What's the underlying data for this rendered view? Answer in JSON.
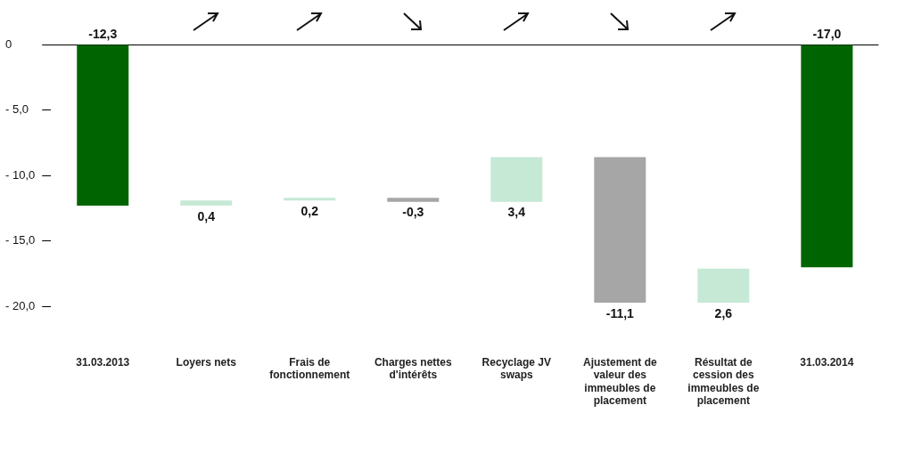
{
  "chart_data": {
    "type": "bar",
    "categories": [
      "31.03.2013",
      "Loyers nets",
      "Frais de fonctionnement",
      "Charges nettes d'intérêts",
      "Recyclage JV swaps",
      "Ajustement de valeur des immeubles de placement",
      "Résultat de cession des immeubles de placement",
      "31.03.2014"
    ],
    "values": [
      -12.3,
      0.4,
      0.2,
      -0.3,
      3.4,
      -11.1,
      2.6,
      -17.0
    ],
    "base": [
      0,
      -12.3,
      -11.9,
      -11.7,
      -12.0,
      -8.6,
      -19.7,
      0
    ],
    "colors": [
      "#006400",
      "#c6e9d6",
      "#c6e9d6",
      "#a6a6a6",
      "#c6e9d6",
      "#a6a6a6",
      "#c6e9d6",
      "#006400"
    ],
    "value_labels": [
      "-12,3",
      "0,4",
      "0,2",
      "-0,3",
      "3,4",
      "-11,1",
      "2,6",
      "-17,0"
    ],
    "ylim": [
      -20,
      0
    ],
    "yticks": [
      {
        "value": 0,
        "label": "0"
      },
      {
        "value": -5,
        "label": "- 5,0"
      },
      {
        "value": -10,
        "label": "- 10,0"
      },
      {
        "value": -15,
        "label": "- 15,0"
      },
      {
        "value": -20,
        "label": "- 20,0"
      }
    ],
    "grid": false,
    "legend": false
  }
}
